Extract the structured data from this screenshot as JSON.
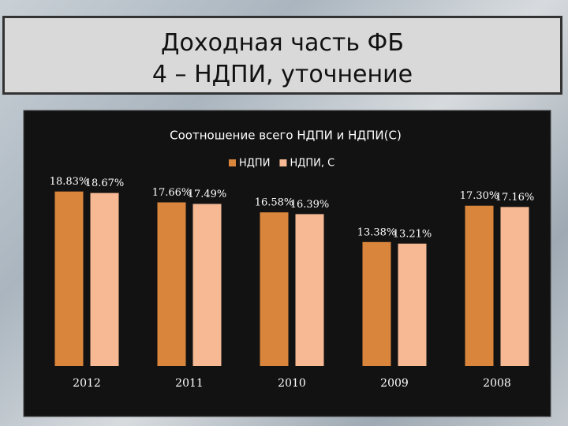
{
  "slide": {
    "title_lines": [
      "Доходная часть ФБ",
      "4 – НДПИ, уточнение"
    ]
  },
  "chart_data": {
    "type": "bar",
    "title": "Соотношение всего НДПИ и НДПИ(С)",
    "categories": [
      "2012",
      "2011",
      "2010",
      "2009",
      "2008"
    ],
    "series": [
      {
        "name": "НДПИ",
        "color": "#d9853b",
        "values": [
          18.83,
          17.66,
          16.58,
          13.38,
          17.3
        ],
        "value_labels": [
          "18.83%",
          "17.66%",
          "16.58%",
          "13.38%",
          "17.30%"
        ]
      },
      {
        "name": "НДПИ, С",
        "color": "#f6b994",
        "values": [
          18.67,
          17.49,
          16.39,
          13.21,
          17.16
        ],
        "value_labels": [
          "18.67%",
          "17.49%",
          "16.39%",
          "13.21%",
          "17.16%"
        ]
      }
    ],
    "ylim": [
      0,
      20
    ],
    "legend": "top"
  }
}
